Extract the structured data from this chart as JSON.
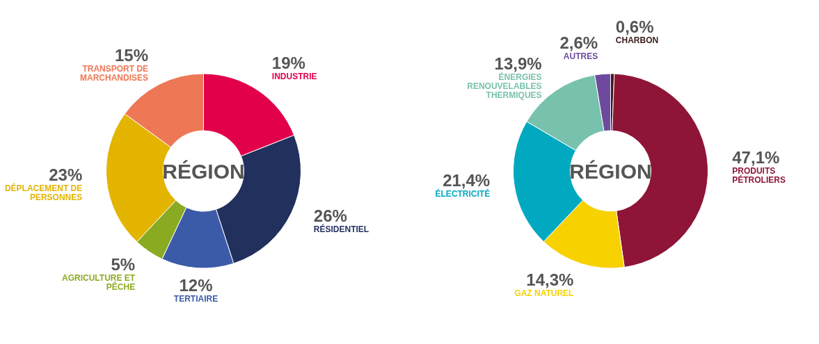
{
  "chart_data": [
    {
      "type": "donut",
      "annotations": [
        "RÉGION"
      ],
      "categories": [
        "INDUSTRIE",
        "RÉSIDENTIEL",
        "TERTIAIRE",
        "AGRICULTURE ET PÊCHE",
        "DÉPLACEMENT DE PERSONNES",
        "TRANSPORT DE MARCHANDISES"
      ],
      "values": [
        19,
        26,
        12,
        5,
        23,
        15
      ],
      "value_labels": [
        "19%",
        "26%",
        "12%",
        "5%",
        "23%",
        "15%"
      ],
      "colors": [
        "#e2004a",
        "#22305e",
        "#3b5ba8",
        "#8aaa22",
        "#e3b400",
        "#ee7755"
      ]
    },
    {
      "type": "donut",
      "annotations": [
        "RÉGION"
      ],
      "categories": [
        "CHARBON",
        "PRODUITS PÉTROLIERS",
        "GAZ NATUREL",
        "ÉLECTRICITÉ",
        "ÉNERGIES RENOUVELABLES THERMIQUES",
        "AUTRES"
      ],
      "values": [
        0.6,
        47.1,
        14.3,
        21.4,
        13.9,
        2.6
      ],
      "value_labels": [
        "0,6%",
        "47,1%",
        "14,3%",
        "21,4%",
        "13,9%",
        "2,6%"
      ],
      "colors": [
        "#3a1a1a",
        "#8e1538",
        "#f7d100",
        "#00a9c0",
        "#78c2ad",
        "#6e4a9e"
      ]
    }
  ]
}
